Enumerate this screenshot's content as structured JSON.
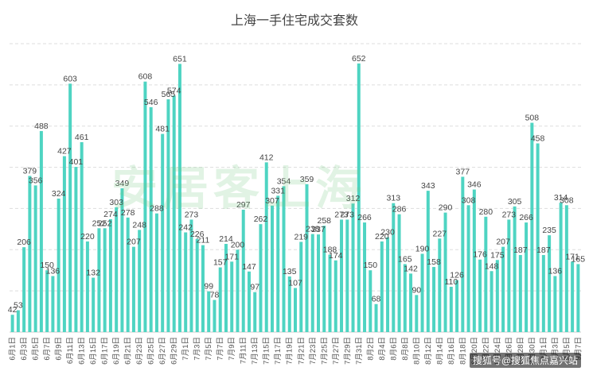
{
  "title": "上海一手住宅成交套数",
  "watermark": "安居客上海",
  "credit": "搜狐号@搜狐焦点嘉兴站",
  "colors": {
    "bar": "#4ed4c2",
    "grid": "#dddddd",
    "text": "#444444"
  },
  "chart_data": {
    "type": "bar",
    "title": "上海一手住宅成交套数",
    "xlabel": "",
    "ylabel": "",
    "ylim": [
      0,
      700
    ],
    "grid": true,
    "legend": "none",
    "categories": [
      "6月1日",
      "6月2日",
      "6月3日",
      "6月4日",
      "6月5日",
      "6月6日",
      "6月7日",
      "6月8日",
      "6月9日",
      "6月10日",
      "6月11日",
      "6月12日",
      "6月13日",
      "6月14日",
      "6月15日",
      "6月16日",
      "6月17日",
      "6月18日",
      "6月19日",
      "6月20日",
      "6月21日",
      "6月22日",
      "6月23日",
      "6月24日",
      "6月25日",
      "6月26日",
      "6月27日",
      "6月28日",
      "6月29日",
      "6月30日",
      "7月1日",
      "7月2日",
      "7月3日",
      "7月4日",
      "7月5日",
      "7月6日",
      "7月7日",
      "7月8日",
      "7月9日",
      "7月10日",
      "7月11日",
      "7月12日",
      "7月13日",
      "7月14日",
      "7月15日",
      "7月16日",
      "7月17日",
      "7月18日",
      "7月19日",
      "7月20日",
      "7月21日",
      "7月22日",
      "7月23日",
      "7月24日",
      "7月25日",
      "7月26日",
      "7月27日",
      "7月28日",
      "7月29日",
      "7月30日",
      "7月31日",
      "8月1日",
      "8月2日",
      "8月3日",
      "8月4日",
      "8月5日",
      "8月6日",
      "8月7日",
      "8月8日",
      "8月9日",
      "8月10日",
      "8月11日",
      "8月12日",
      "8月13日",
      "8月14日",
      "8月15日",
      "8月16日",
      "8月17日",
      "8月18日",
      "8月19日",
      "8月20日",
      "8月21日",
      "8月22日",
      "8月23日",
      "8月24日",
      "8月25日",
      "8月26日",
      "8月27日",
      "8月28日",
      "8月29日",
      "8月30日",
      "8月31日",
      "9月1日",
      "9月2日",
      "9月3日",
      "9月4日",
      "9月5日",
      "9月6日",
      "9月7日"
    ],
    "values": [
      42,
      53,
      206,
      379,
      356,
      488,
      150,
      136,
      324,
      427,
      603,
      401,
      461,
      220,
      132,
      252,
      252,
      274,
      303,
      349,
      278,
      207,
      248,
      608,
      546,
      288,
      481,
      565,
      574,
      651,
      242,
      273,
      226,
      211,
      99,
      78,
      157,
      214,
      171,
      200,
      297,
      147,
      97,
      262,
      412,
      307,
      331,
      354,
      135,
      107,
      219,
      359,
      238,
      237,
      258,
      188,
      174,
      273,
      273,
      312,
      652,
      266,
      150,
      68,
      220,
      230,
      313,
      286,
      165,
      142,
      90,
      190,
      343,
      158,
      227,
      290,
      110,
      126,
      377,
      308,
      346,
      176,
      280,
      148,
      175,
      207,
      273,
      305,
      187,
      266,
      508,
      458,
      187,
      235,
      136,
      314,
      308,
      171,
      165
    ],
    "tick_every": 2
  }
}
